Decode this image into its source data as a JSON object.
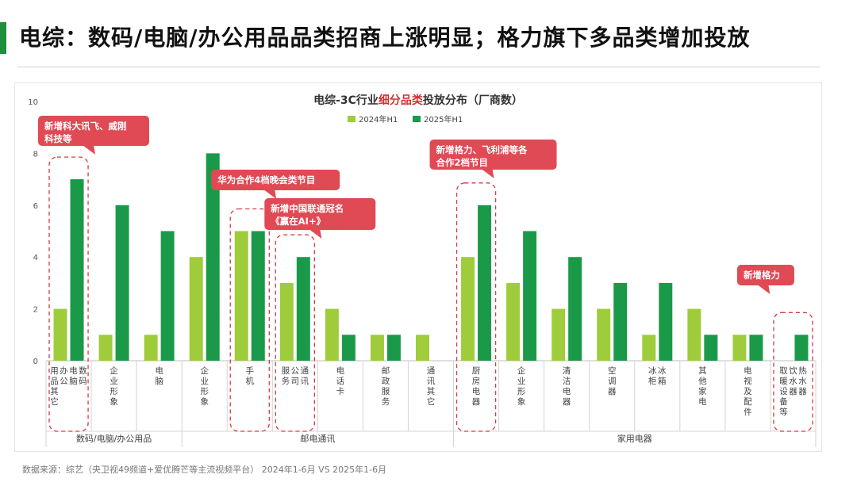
{
  "header": {
    "title": "电综：数码/电脑/办公用品品类招商上涨明显；格力旗下多品类增加投放"
  },
  "footer": {
    "source": "数据来源：综艺（央卫视49频道+爱优腾芒等主流视频平台） 2024年1-6月 VS 2025年1-6月"
  },
  "colors": {
    "series_2024": "#9fcc3b",
    "series_2025": "#1a9a49",
    "callout_bg": "#e04a55",
    "callout_border": "#d63a44",
    "title_accent": "#1e8f3a",
    "highlight_text": "#d32f2f"
  },
  "chart_data": {
    "type": "bar",
    "title_parts": [
      "电综-3C行业",
      "细分品类",
      "投放分布（厂商数）"
    ],
    "ylim": [
      0,
      10
    ],
    "yticks": [
      "0",
      "2",
      "4",
      "6",
      "8",
      "10"
    ],
    "categories": [
      [
        "数码",
        "电脑",
        "办公",
        "用品其它"
      ],
      [
        "企业形象"
      ],
      [
        "电脑"
      ],
      [
        "企业形象"
      ],
      [
        "手机"
      ],
      [
        "通讯",
        "公司",
        "服务"
      ],
      [
        "电话卡"
      ],
      [
        "邮政服务"
      ],
      [
        "通讯其它"
      ],
      [
        "厨房电器"
      ],
      [
        "企业形象"
      ],
      [
        "清洁电器"
      ],
      [
        "空调器"
      ],
      [
        "冰箱",
        "冰柜"
      ],
      [
        "其他家电"
      ],
      [
        "电视及配件"
      ],
      [
        "热水器",
        "饮水器",
        "取暖设备等"
      ]
    ],
    "series": [
      {
        "name": "2024年H1",
        "values": [
          2,
          1,
          1,
          4,
          5,
          3,
          2,
          1,
          1,
          4,
          3,
          2,
          2,
          1,
          2,
          1,
          0
        ]
      },
      {
        "name": "2025年H1",
        "values": [
          7,
          6,
          5,
          8,
          5,
          4,
          1,
          1,
          0,
          6,
          5,
          4,
          3,
          3,
          1,
          1,
          1
        ]
      }
    ],
    "groups": [
      {
        "label": "数码/电脑/办公用品",
        "start": 0,
        "end": 2
      },
      {
        "label": "邮电通讯",
        "start": 3,
        "end": 8
      },
      {
        "label": "家用电器",
        "start": 9,
        "end": 16
      }
    ],
    "annotations": [
      {
        "lines": [
          "新增科大讯飞、威刚",
          "科技等"
        ],
        "category": 0
      },
      {
        "lines": [
          "华为合作4档晚会类节目"
        ],
        "category": 4
      },
      {
        "lines": [
          "新增中国联通冠名",
          "《赢在AI+》"
        ],
        "category": 5
      },
      {
        "lines": [
          "新增格力、飞利浦等各",
          "合作2档节目"
        ],
        "category": 9
      },
      {
        "lines": [
          "新增格力"
        ],
        "category": 16
      }
    ],
    "legend_position": "top-center"
  }
}
